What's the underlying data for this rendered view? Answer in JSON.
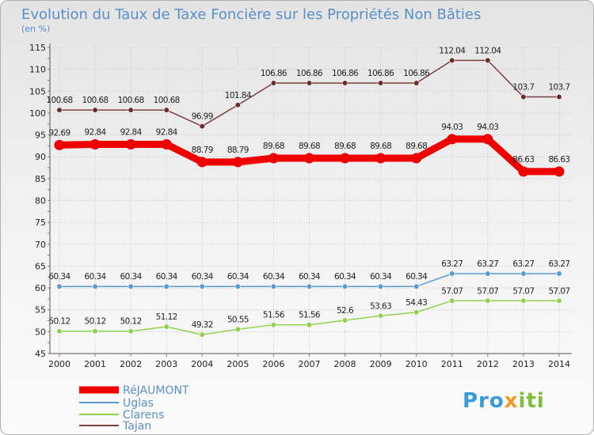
{
  "chart_data": {
    "type": "line",
    "title": "Evolution du Taux de Taxe Foncière sur les Propriétés Non Bâties",
    "ylabel": "(en %)",
    "ylim": [
      45,
      115
    ],
    "yticks": [
      45,
      50,
      55,
      60,
      65,
      70,
      75,
      80,
      85,
      90,
      95,
      100,
      105,
      110,
      115
    ],
    "categories": [
      "2000",
      "2001",
      "2002",
      "2003",
      "2004",
      "2005",
      "2006",
      "2007",
      "2008",
      "2009",
      "2010",
      "2011",
      "2012",
      "2013",
      "2014"
    ],
    "series": [
      {
        "name": "RéJAUMONT",
        "color": "#ee0000",
        "values": [
          92.69,
          92.84,
          92.84,
          92.84,
          88.79,
          88.79,
          89.68,
          89.68,
          89.68,
          89.68,
          89.68,
          94.03,
          94.03,
          86.63,
          86.63
        ],
        "labels": [
          "92.69",
          "92.84",
          "92.84",
          "92.84",
          "88.79",
          "88.79",
          "89.68",
          "89.68",
          "89.68",
          "89.68",
          "89.68",
          "94.03",
          "94.03",
          "86.63",
          "86.63"
        ]
      },
      {
        "name": "Uglas",
        "color": "#5b9bd5",
        "values": [
          60.34,
          60.34,
          60.34,
          60.34,
          60.34,
          60.34,
          60.34,
          60.34,
          60.34,
          60.34,
          60.34,
          63.27,
          63.27,
          63.27,
          63.27
        ],
        "labels": [
          "60.34",
          "60.34",
          "60.34",
          "60.34",
          "60.34",
          "60.34",
          "60.34",
          "60.34",
          "60.34",
          "60.34",
          "60.34",
          "63.27",
          "63.27",
          "63.27",
          "63.27"
        ]
      },
      {
        "name": "Clarens",
        "color": "#92d050",
        "values": [
          50.12,
          50.12,
          50.12,
          51.12,
          49.32,
          50.55,
          51.56,
          51.56,
          52.6,
          53.63,
          54.43,
          57.07,
          57.07,
          57.07,
          57.07
        ],
        "labels": [
          "50.12",
          "50.12",
          "50.12",
          "51.12",
          "49.32",
          "50.55",
          "51.56",
          "51.56",
          "52.6",
          "53.63",
          "54.43",
          "57.07",
          "57.07",
          "57.07",
          "57.07"
        ]
      },
      {
        "name": "Tajan",
        "color": "#7b3f3f",
        "values": [
          100.68,
          100.68,
          100.68,
          100.68,
          96.99,
          101.84,
          106.86,
          106.86,
          106.86,
          106.86,
          106.86,
          112.04,
          112.04,
          103.7,
          103.7
        ],
        "labels": [
          "100.68",
          "100.68",
          "100.68",
          "100.68",
          "96.99",
          "101.84",
          "106.86",
          "106.86",
          "106.86",
          "106.86",
          "106.86",
          "112.04",
          "112.04",
          "103.7",
          "103.7"
        ]
      }
    ],
    "legend": "bottom-left"
  },
  "logo": {
    "text": "Proxiti"
  }
}
